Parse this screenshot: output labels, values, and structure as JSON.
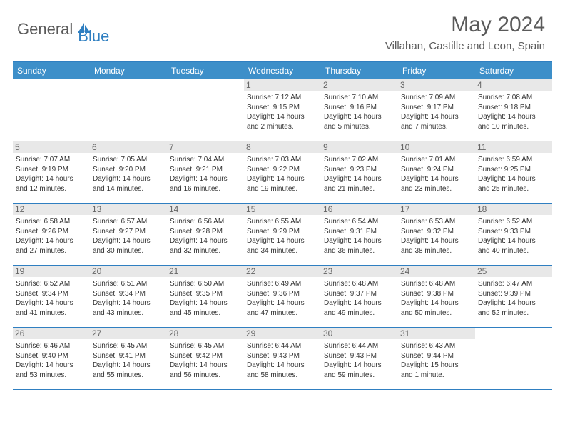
{
  "logo": {
    "part1": "General",
    "part2": "Blue"
  },
  "title": "May 2024",
  "location": "Villahan, Castille and Leon, Spain",
  "dow": [
    "Sunday",
    "Monday",
    "Tuesday",
    "Wednesday",
    "Thursday",
    "Friday",
    "Saturday"
  ],
  "colors": {
    "headerBg": "#3d8fc9",
    "accent": "#2f7fc1",
    "dayNumBg": "#e8e8e8",
    "text": "#333333",
    "titleText": "#5a5a5a"
  },
  "weeks": [
    [
      {
        "n": "",
        "sr": "",
        "ss": "",
        "dl": ""
      },
      {
        "n": "",
        "sr": "",
        "ss": "",
        "dl": ""
      },
      {
        "n": "",
        "sr": "",
        "ss": "",
        "dl": ""
      },
      {
        "n": "1",
        "sr": "Sunrise: 7:12 AM",
        "ss": "Sunset: 9:15 PM",
        "dl": "Daylight: 14 hours and 2 minutes."
      },
      {
        "n": "2",
        "sr": "Sunrise: 7:10 AM",
        "ss": "Sunset: 9:16 PM",
        "dl": "Daylight: 14 hours and 5 minutes."
      },
      {
        "n": "3",
        "sr": "Sunrise: 7:09 AM",
        "ss": "Sunset: 9:17 PM",
        "dl": "Daylight: 14 hours and 7 minutes."
      },
      {
        "n": "4",
        "sr": "Sunrise: 7:08 AM",
        "ss": "Sunset: 9:18 PM",
        "dl": "Daylight: 14 hours and 10 minutes."
      }
    ],
    [
      {
        "n": "5",
        "sr": "Sunrise: 7:07 AM",
        "ss": "Sunset: 9:19 PM",
        "dl": "Daylight: 14 hours and 12 minutes."
      },
      {
        "n": "6",
        "sr": "Sunrise: 7:05 AM",
        "ss": "Sunset: 9:20 PM",
        "dl": "Daylight: 14 hours and 14 minutes."
      },
      {
        "n": "7",
        "sr": "Sunrise: 7:04 AM",
        "ss": "Sunset: 9:21 PM",
        "dl": "Daylight: 14 hours and 16 minutes."
      },
      {
        "n": "8",
        "sr": "Sunrise: 7:03 AM",
        "ss": "Sunset: 9:22 PM",
        "dl": "Daylight: 14 hours and 19 minutes."
      },
      {
        "n": "9",
        "sr": "Sunrise: 7:02 AM",
        "ss": "Sunset: 9:23 PM",
        "dl": "Daylight: 14 hours and 21 minutes."
      },
      {
        "n": "10",
        "sr": "Sunrise: 7:01 AM",
        "ss": "Sunset: 9:24 PM",
        "dl": "Daylight: 14 hours and 23 minutes."
      },
      {
        "n": "11",
        "sr": "Sunrise: 6:59 AM",
        "ss": "Sunset: 9:25 PM",
        "dl": "Daylight: 14 hours and 25 minutes."
      }
    ],
    [
      {
        "n": "12",
        "sr": "Sunrise: 6:58 AM",
        "ss": "Sunset: 9:26 PM",
        "dl": "Daylight: 14 hours and 27 minutes."
      },
      {
        "n": "13",
        "sr": "Sunrise: 6:57 AM",
        "ss": "Sunset: 9:27 PM",
        "dl": "Daylight: 14 hours and 30 minutes."
      },
      {
        "n": "14",
        "sr": "Sunrise: 6:56 AM",
        "ss": "Sunset: 9:28 PM",
        "dl": "Daylight: 14 hours and 32 minutes."
      },
      {
        "n": "15",
        "sr": "Sunrise: 6:55 AM",
        "ss": "Sunset: 9:29 PM",
        "dl": "Daylight: 14 hours and 34 minutes."
      },
      {
        "n": "16",
        "sr": "Sunrise: 6:54 AM",
        "ss": "Sunset: 9:31 PM",
        "dl": "Daylight: 14 hours and 36 minutes."
      },
      {
        "n": "17",
        "sr": "Sunrise: 6:53 AM",
        "ss": "Sunset: 9:32 PM",
        "dl": "Daylight: 14 hours and 38 minutes."
      },
      {
        "n": "18",
        "sr": "Sunrise: 6:52 AM",
        "ss": "Sunset: 9:33 PM",
        "dl": "Daylight: 14 hours and 40 minutes."
      }
    ],
    [
      {
        "n": "19",
        "sr": "Sunrise: 6:52 AM",
        "ss": "Sunset: 9:34 PM",
        "dl": "Daylight: 14 hours and 41 minutes."
      },
      {
        "n": "20",
        "sr": "Sunrise: 6:51 AM",
        "ss": "Sunset: 9:34 PM",
        "dl": "Daylight: 14 hours and 43 minutes."
      },
      {
        "n": "21",
        "sr": "Sunrise: 6:50 AM",
        "ss": "Sunset: 9:35 PM",
        "dl": "Daylight: 14 hours and 45 minutes."
      },
      {
        "n": "22",
        "sr": "Sunrise: 6:49 AM",
        "ss": "Sunset: 9:36 PM",
        "dl": "Daylight: 14 hours and 47 minutes."
      },
      {
        "n": "23",
        "sr": "Sunrise: 6:48 AM",
        "ss": "Sunset: 9:37 PM",
        "dl": "Daylight: 14 hours and 49 minutes."
      },
      {
        "n": "24",
        "sr": "Sunrise: 6:48 AM",
        "ss": "Sunset: 9:38 PM",
        "dl": "Daylight: 14 hours and 50 minutes."
      },
      {
        "n": "25",
        "sr": "Sunrise: 6:47 AM",
        "ss": "Sunset: 9:39 PM",
        "dl": "Daylight: 14 hours and 52 minutes."
      }
    ],
    [
      {
        "n": "26",
        "sr": "Sunrise: 6:46 AM",
        "ss": "Sunset: 9:40 PM",
        "dl": "Daylight: 14 hours and 53 minutes."
      },
      {
        "n": "27",
        "sr": "Sunrise: 6:45 AM",
        "ss": "Sunset: 9:41 PM",
        "dl": "Daylight: 14 hours and 55 minutes."
      },
      {
        "n": "28",
        "sr": "Sunrise: 6:45 AM",
        "ss": "Sunset: 9:42 PM",
        "dl": "Daylight: 14 hours and 56 minutes."
      },
      {
        "n": "29",
        "sr": "Sunrise: 6:44 AM",
        "ss": "Sunset: 9:43 PM",
        "dl": "Daylight: 14 hours and 58 minutes."
      },
      {
        "n": "30",
        "sr": "Sunrise: 6:44 AM",
        "ss": "Sunset: 9:43 PM",
        "dl": "Daylight: 14 hours and 59 minutes."
      },
      {
        "n": "31",
        "sr": "Sunrise: 6:43 AM",
        "ss": "Sunset: 9:44 PM",
        "dl": "Daylight: 15 hours and 1 minute."
      },
      {
        "n": "",
        "sr": "",
        "ss": "",
        "dl": ""
      }
    ]
  ]
}
